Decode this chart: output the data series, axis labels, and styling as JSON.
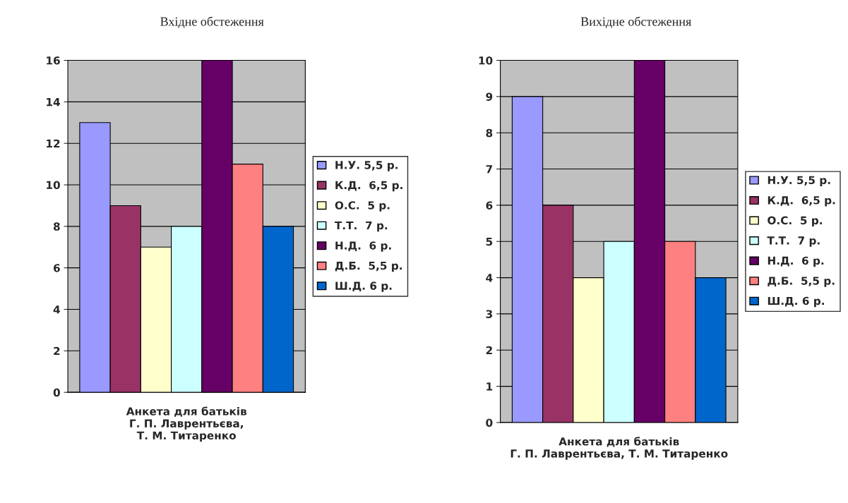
{
  "chart_data": [
    {
      "type": "bar",
      "title": "Вхідне обстеження",
      "xlabel": "Анкета для батьків\nГ. П. Лаврентьєва,\nТ. М. Титаренко",
      "categories": [
        null
      ],
      "ylim": [
        0,
        16
      ],
      "yticks": [
        0,
        2,
        4,
        6,
        8,
        10,
        12,
        14,
        16
      ],
      "grid": "y",
      "legend": "right",
      "series": [
        {
          "name": "Н.У. 5,5 р.",
          "color": "#9999ff",
          "values": [
            13
          ]
        },
        {
          "name": "К.Д.  6,5 р.",
          "color": "#993366",
          "values": [
            9
          ]
        },
        {
          "name": "О.С.  5 р.",
          "color": "#ffffcc",
          "values": [
            7
          ]
        },
        {
          "name": "Т.Т.  7 р.",
          "color": "#ccffff",
          "values": [
            8
          ]
        },
        {
          "name": "Н.Д.  6 р.",
          "color": "#660066",
          "values": [
            16
          ]
        },
        {
          "name": "Д.Б.  5,5 р.",
          "color": "#ff8080",
          "values": [
            11
          ]
        },
        {
          "name": "Ш.Д. 6 р.",
          "color": "#0066cc",
          "values": [
            8
          ]
        }
      ]
    },
    {
      "type": "bar",
      "title": "Вихідне обстеження",
      "xlabel": "Анкета для батьків\nГ. П. Лаврентьєва, Т. М. Титаренко",
      "categories": [
        null
      ],
      "ylim": [
        0,
        10
      ],
      "yticks": [
        0,
        1,
        2,
        3,
        4,
        5,
        6,
        7,
        8,
        9,
        10
      ],
      "grid": "y",
      "legend": "right",
      "series": [
        {
          "name": "Н.У. 5,5 р.",
          "color": "#9999ff",
          "values": [
            9
          ]
        },
        {
          "name": "К.Д.  6,5 р.",
          "color": "#993366",
          "values": [
            6
          ]
        },
        {
          "name": "О.С.  5 р.",
          "color": "#ffffcc",
          "values": [
            4
          ]
        },
        {
          "name": "Т.Т.  7 р.",
          "color": "#ccffff",
          "values": [
            5
          ]
        },
        {
          "name": "Н.Д.  6 р.",
          "color": "#660066",
          "values": [
            10
          ]
        },
        {
          "name": "Д.Б.  5,5 р.",
          "color": "#ff8080",
          "values": [
            5
          ]
        },
        {
          "name": "Ш.Д. 6 р.",
          "color": "#0066cc",
          "values": [
            4
          ]
        }
      ]
    }
  ]
}
